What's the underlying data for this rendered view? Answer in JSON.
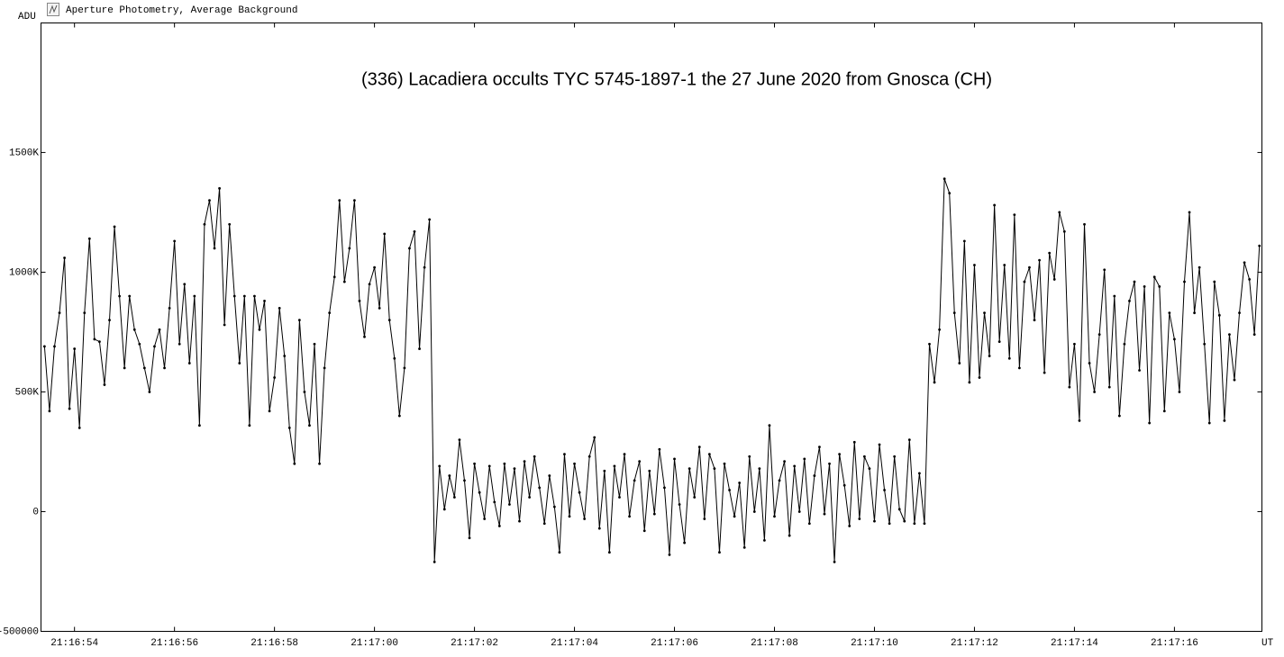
{
  "window_title": "Aperture Photometry, Average Background",
  "chart_data": {
    "type": "line",
    "title": "(336) Lacadiera occults TYC 5745-1897-1 the 27 June 2020 from Gnosca (CH)",
    "y_label": "ADU",
    "x_label": "UT",
    "color": "#000000",
    "grid": false,
    "xlim": [
      53.33,
      77.75
    ],
    "xticks": [
      {
        "value": 54,
        "label": "21:16:54"
      },
      {
        "value": 56,
        "label": "21:16:56"
      },
      {
        "value": 58,
        "label": "21:16:58"
      },
      {
        "value": 60,
        "label": "21:17:00"
      },
      {
        "value": 62,
        "label": "21:17:02"
      },
      {
        "value": 64,
        "label": "21:17:04"
      },
      {
        "value": 66,
        "label": "21:17:06"
      },
      {
        "value": 68,
        "label": "21:17:08"
      },
      {
        "value": 70,
        "label": "21:17:10"
      },
      {
        "value": 72,
        "label": "21:17:12"
      },
      {
        "value": 74,
        "label": "21:17:14"
      },
      {
        "value": 76,
        "label": "21:17:16"
      }
    ],
    "ylim": [
      -500000,
      2041000
    ],
    "yticks": [
      {
        "value": -500000,
        "label": "-500000"
      },
      0,
      {
        "value": 500000,
        "label": "500K"
      },
      {
        "value": 1000000,
        "label": "1000K"
      },
      {
        "value": 1500000,
        "label": "1500K"
      }
    ],
    "x": [
      53.4,
      53.5,
      53.6,
      53.7,
      53.8,
      53.9,
      54.0,
      54.1,
      54.2,
      54.3,
      54.4,
      54.5,
      54.6,
      54.7,
      54.8,
      54.9,
      55.0,
      55.1,
      55.2,
      55.3,
      55.4,
      55.5,
      55.6,
      55.7,
      55.8,
      55.9,
      56.0,
      56.1,
      56.2,
      56.3,
      56.4,
      56.5,
      56.6,
      56.7,
      56.8,
      56.9,
      57.0,
      57.1,
      57.2,
      57.3,
      57.4,
      57.5,
      57.6,
      57.7,
      57.8,
      57.9,
      58.0,
      58.1,
      58.2,
      58.3,
      58.4,
      58.5,
      58.6,
      58.7,
      58.8,
      58.9,
      59.0,
      59.1,
      59.2,
      59.3,
      59.4,
      59.5,
      59.6,
      59.7,
      59.8,
      59.9,
      60.0,
      60.1,
      60.2,
      60.3,
      60.4,
      60.5,
      60.6,
      60.7,
      60.8,
      60.9,
      61.0,
      61.1,
      61.2,
      61.3,
      61.4,
      61.5,
      61.6,
      61.7,
      61.8,
      61.9,
      62.0,
      62.1,
      62.2,
      62.3,
      62.4,
      62.5,
      62.6,
      62.7,
      62.8,
      62.9,
      63.0,
      63.1,
      63.2,
      63.3,
      63.4,
      63.5,
      63.6,
      63.7,
      63.8,
      63.9,
      64.0,
      64.1,
      64.2,
      64.3,
      64.4,
      64.5,
      64.6,
      64.7,
      64.8,
      64.9,
      65.0,
      65.1,
      65.2,
      65.3,
      65.4,
      65.5,
      65.6,
      65.7,
      65.8,
      65.9,
      66.0,
      66.1,
      66.2,
      66.3,
      66.4,
      66.5,
      66.6,
      66.7,
      66.8,
      66.9,
      67.0,
      67.1,
      67.2,
      67.3,
      67.4,
      67.5,
      67.6,
      67.7,
      67.8,
      67.9,
      68.0,
      68.1,
      68.2,
      68.3,
      68.4,
      68.5,
      68.6,
      68.7,
      68.8,
      68.9,
      69.0,
      69.1,
      69.2,
      69.3,
      69.4,
      69.5,
      69.6,
      69.7,
      69.8,
      69.9,
      70.0,
      70.1,
      70.2,
      70.3,
      70.4,
      70.5,
      70.6,
      70.7,
      70.8,
      70.9,
      71.0,
      71.1,
      71.2,
      71.3,
      71.4,
      71.5,
      71.6,
      71.7,
      71.8,
      71.9,
      72.0,
      72.1,
      72.2,
      72.3,
      72.4,
      72.5,
      72.6,
      72.7,
      72.8,
      72.9,
      73.0,
      73.1,
      73.2,
      73.3,
      73.4,
      73.5,
      73.6,
      73.7,
      73.8,
      73.9,
      74.0,
      74.1,
      74.2,
      74.3,
      74.4,
      74.5,
      74.6,
      74.7,
      74.8,
      74.9,
      75.0,
      75.1,
      75.2,
      75.3,
      75.4,
      75.5,
      75.6,
      75.7,
      75.8,
      75.9,
      76.0,
      76.1,
      76.2,
      76.3,
      76.4,
      76.5,
      76.6,
      76.7,
      76.8,
      76.9,
      77.0,
      77.1,
      77.2,
      77.3,
      77.4,
      77.5,
      77.6,
      77.7
    ],
    "values": [
      690000,
      420000,
      690000,
      830000,
      1060000,
      430000,
      680000,
      350000,
      830000,
      1140000,
      720000,
      710000,
      530000,
      800000,
      1190000,
      900000,
      600000,
      900000,
      760000,
      700000,
      600000,
      500000,
      690000,
      760000,
      600000,
      850000,
      1130000,
      700000,
      950000,
      620000,
      900000,
      360000,
      1200000,
      1300000,
      1100000,
      1350000,
      780000,
      1200000,
      900000,
      620000,
      900000,
      360000,
      900000,
      760000,
      880000,
      420000,
      560000,
      850000,
      650000,
      350000,
      200000,
      800000,
      500000,
      360000,
      700000,
      200000,
      600000,
      830000,
      980000,
      1300000,
      960000,
      1100000,
      1300000,
      880000,
      730000,
      950000,
      1020000,
      850000,
      1160000,
      800000,
      640000,
      400000,
      600000,
      1100000,
      1170000,
      680000,
      1020000,
      1220000,
      -210000,
      190000,
      10000,
      150000,
      60000,
      300000,
      130000,
      -110000,
      200000,
      80000,
      -30000,
      190000,
      40000,
      -60000,
      200000,
      30000,
      180000,
      -40000,
      210000,
      60000,
      230000,
      100000,
      -50000,
      150000,
      20000,
      -170000,
      240000,
      -20000,
      200000,
      80000,
      -30000,
      230000,
      310000,
      -70000,
      170000,
      -170000,
      190000,
      60000,
      240000,
      -20000,
      130000,
      210000,
      -80000,
      170000,
      -10000,
      260000,
      100000,
      -180000,
      220000,
      30000,
      -130000,
      180000,
      60000,
      270000,
      -30000,
      240000,
      180000,
      -170000,
      200000,
      90000,
      -20000,
      120000,
      -150000,
      230000,
      0,
      180000,
      -120000,
      360000,
      -20000,
      130000,
      210000,
      -100000,
      190000,
      0,
      220000,
      -50000,
      150000,
      270000,
      -10000,
      200000,
      -210000,
      240000,
      110000,
      -60000,
      290000,
      -30000,
      230000,
      180000,
      -40000,
      280000,
      90000,
      -50000,
      230000,
      10000,
      -40000,
      300000,
      -50000,
      160000,
      -50000,
      700000,
      540000,
      760000,
      1390000,
      1330000,
      830000,
      620000,
      1130000,
      540000,
      1030000,
      560000,
      830000,
      650000,
      1280000,
      710000,
      1030000,
      640000,
      1240000,
      600000,
      960000,
      1020000,
      800000,
      1050000,
      580000,
      1080000,
      970000,
      1250000,
      1170000,
      520000,
      700000,
      380000,
      1200000,
      620000,
      500000,
      740000,
      1010000,
      520000,
      900000,
      400000,
      700000,
      880000,
      960000,
      590000,
      940000,
      370000,
      980000,
      940000,
      420000,
      830000,
      720000,
      500000,
      960000,
      1250000,
      830000,
      1020000,
      700000,
      370000,
      960000,
      820000,
      380000,
      740000,
      550000,
      830000,
      1040000,
      970000,
      740000,
      1110000
    ]
  }
}
